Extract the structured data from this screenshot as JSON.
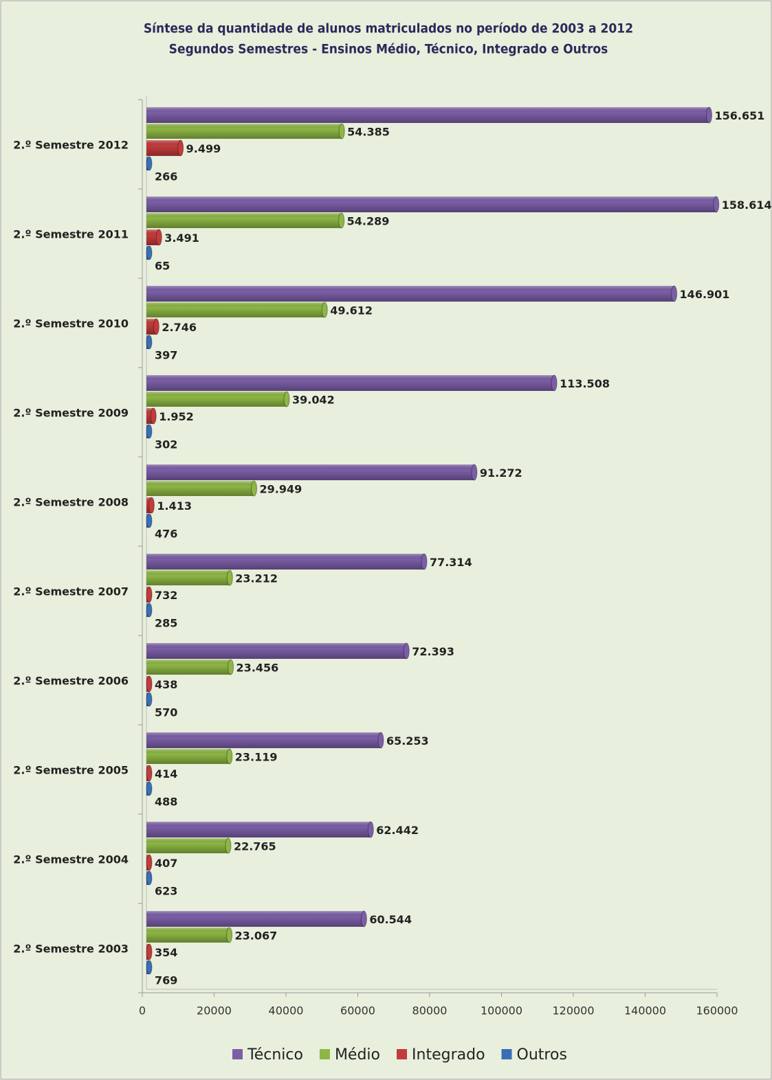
{
  "chart_data": {
    "type": "bar",
    "orientation": "horizontal",
    "title": "Síntese da quantidade de alunos matriculados no período de  2003 a 2012",
    "subtitle": "Segundos Semestres - Ensinos Médio, Técnico, Integrado e Outros",
    "categories": [
      "2.º Semestre 2012",
      "2.º Semestre 2011",
      "2.º Semestre 2010",
      "2.º Semestre 2009",
      "2.º Semestre 2008",
      "2.º Semestre 2007",
      "2.º Semestre 2006",
      "2.º Semestre 2005",
      "2.º Semestre 2004",
      "2.º Semestre 2003"
    ],
    "series": [
      {
        "name": "Técnico",
        "color": "#7b5ea7",
        "values": [
          156651,
          158614,
          146901,
          113508,
          91272,
          77314,
          72393,
          65253,
          62442,
          60544
        ],
        "value_labels": [
          "156.651",
          "158.614",
          "146.901",
          "113.508",
          "91.272",
          "77.314",
          "72.393",
          "65.253",
          "62.442",
          "60.544"
        ]
      },
      {
        "name": "Médio",
        "color": "#8db644",
        "values": [
          54385,
          54289,
          49612,
          39042,
          29949,
          23212,
          23456,
          23119,
          22765,
          23067
        ],
        "value_labels": [
          "54.385",
          "54.289",
          "49.612",
          "39.042",
          "29.949",
          "23.212",
          "23.456",
          "23.119",
          "22.765",
          "23.067"
        ]
      },
      {
        "name": "Integrado",
        "color": "#c23b3b",
        "values": [
          9499,
          3491,
          2746,
          1952,
          1413,
          732,
          438,
          414,
          407,
          354
        ],
        "value_labels": [
          "9.499",
          "3.491",
          "2.746",
          "1.952",
          "1.413",
          "732",
          "438",
          "414",
          "407",
          "354"
        ]
      },
      {
        "name": "Outros",
        "color": "#3a6fb5",
        "values": [
          266,
          65,
          397,
          302,
          476,
          285,
          570,
          488,
          623,
          769
        ]
      }
    ],
    "xlim": [
      0,
      160000
    ],
    "xticks": [
      0,
      20000,
      40000,
      60000,
      80000,
      100000,
      120000,
      140000,
      160000
    ],
    "legend": "bottom"
  }
}
